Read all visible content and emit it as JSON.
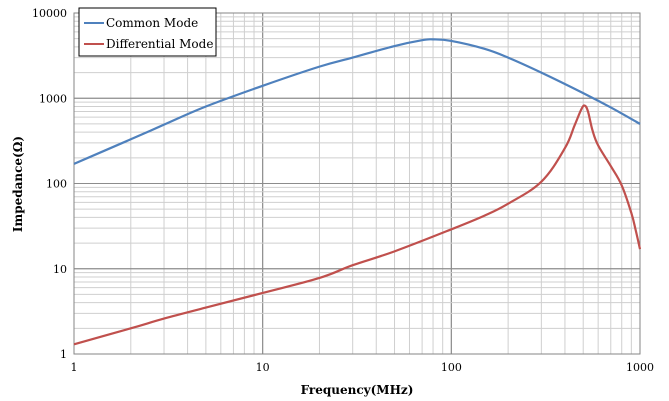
{
  "chart_data": {
    "type": "line",
    "title": "",
    "xlabel": "Frequency(MHz)",
    "ylabel": "Impedance(Ω)",
    "xscale": "log",
    "yscale": "log",
    "xlim": [
      1,
      1000
    ],
    "ylim": [
      1,
      10000
    ],
    "grid": true,
    "legend_position": "top-left",
    "x_ticks": [
      {
        "value": 1,
        "label": "1"
      },
      {
        "value": 10,
        "label": "10"
      },
      {
        "value": 100,
        "label": "100"
      },
      {
        "value": 1000,
        "label": "1000"
      }
    ],
    "y_ticks": [
      {
        "value": 1,
        "label": "1"
      },
      {
        "value": 10,
        "label": "10"
      },
      {
        "value": 100,
        "label": "100"
      },
      {
        "value": 1000,
        "label": "1000"
      },
      {
        "value": 10000,
        "label": "10000"
      }
    ],
    "series": [
      {
        "name": "Common Mode",
        "color": "#4F81BD",
        "points": [
          [
            1,
            170
          ],
          [
            2,
            330
          ],
          [
            3,
            490
          ],
          [
            5,
            800
          ],
          [
            10,
            1400
          ],
          [
            20,
            2350
          ],
          [
            30,
            3000
          ],
          [
            50,
            4100
          ],
          [
            70,
            4800
          ],
          [
            80,
            4900
          ],
          [
            100,
            4700
          ],
          [
            150,
            3800
          ],
          [
            200,
            3000
          ],
          [
            300,
            2000
          ],
          [
            500,
            1150
          ],
          [
            700,
            780
          ],
          [
            1000,
            500
          ]
        ]
      },
      {
        "name": "Differential Mode",
        "color": "#C0504D",
        "points": [
          [
            1,
            1.3
          ],
          [
            2,
            2.0
          ],
          [
            3,
            2.6
          ],
          [
            5,
            3.5
          ],
          [
            10,
            5.2
          ],
          [
            20,
            7.8
          ],
          [
            30,
            11
          ],
          [
            50,
            16
          ],
          [
            100,
            29
          ],
          [
            150,
            42
          ],
          [
            200,
            58
          ],
          [
            300,
            105
          ],
          [
            400,
            260
          ],
          [
            450,
            480
          ],
          [
            490,
            750
          ],
          [
            510,
            820
          ],
          [
            530,
            700
          ],
          [
            560,
            420
          ],
          [
            600,
            280
          ],
          [
            700,
            160
          ],
          [
            800,
            95
          ],
          [
            900,
            45
          ],
          [
            950,
            28
          ],
          [
            1000,
            17
          ]
        ]
      }
    ]
  }
}
